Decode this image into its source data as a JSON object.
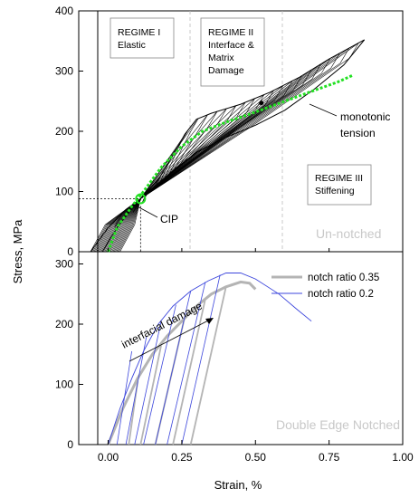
{
  "chart_data": [
    {
      "panel": "top",
      "type": "line",
      "xlabel": "Strain, %",
      "ylabel": "Stress, MPa",
      "xlim": [
        -0.1,
        1.0
      ],
      "ylim": [
        0,
        400
      ],
      "x_ticks": [
        "0.00",
        "0.25",
        "0.50",
        "0.75",
        "1.00"
      ],
      "y_ticks": [
        "0",
        "100",
        "200",
        "300",
        "400"
      ],
      "tag": "Un-notched",
      "regimes": [
        {
          "lines": [
            "REGIME I",
            "Elastic"
          ]
        },
        {
          "lines": [
            "REGIME II",
            "Interface &",
            "Matrix",
            "Damage"
          ]
        },
        {
          "lines": [
            "REGIME III",
            "Stiffening"
          ]
        }
      ],
      "regime_boundaries_x": [
        0.3,
        0.6
      ],
      "annotations": {
        "cip": {
          "label": "CIP",
          "x": 0.11,
          "y": 88
        },
        "monotonic": {
          "lines": [
            "monotonic",
            "tension"
          ]
        }
      },
      "cyclic_envelope_upper": [
        [
          -0.06,
          0
        ],
        [
          0.0,
          40
        ],
        [
          0.06,
          70
        ],
        [
          0.11,
          88
        ],
        [
          0.17,
          120
        ],
        [
          0.22,
          160
        ],
        [
          0.26,
          195
        ],
        [
          0.3,
          220
        ],
        [
          0.35,
          230
        ],
        [
          0.45,
          245
        ],
        [
          0.55,
          265
        ],
        [
          0.65,
          290
        ],
        [
          0.75,
          320
        ],
        [
          0.87,
          352
        ]
      ],
      "cyclic_envelope_lower": [
        [
          -0.02,
          0
        ],
        [
          0.03,
          40
        ],
        [
          0.08,
          72
        ],
        [
          0.11,
          88
        ],
        [
          0.16,
          108
        ],
        [
          0.22,
          135
        ],
        [
          0.3,
          165
        ],
        [
          0.4,
          190
        ],
        [
          0.5,
          210
        ],
        [
          0.6,
          235
        ],
        [
          0.7,
          270
        ],
        [
          0.8,
          310
        ],
        [
          0.87,
          352
        ]
      ],
      "monotonic_tension": [
        [
          0.0,
          0
        ],
        [
          0.03,
          40
        ],
        [
          0.08,
          75
        ],
        [
          0.12,
          100
        ],
        [
          0.18,
          140
        ],
        [
          0.25,
          175
        ],
        [
          0.32,
          200
        ],
        [
          0.4,
          215
        ],
        [
          0.5,
          232
        ],
        [
          0.6,
          250
        ],
        [
          0.7,
          268
        ],
        [
          0.78,
          282
        ],
        [
          0.83,
          293
        ]
      ]
    },
    {
      "panel": "bottom",
      "type": "line",
      "xlabel": "Strain, %",
      "ylabel": "Stress, MPa",
      "xlim": [
        -0.1,
        1.0
      ],
      "ylim": [
        0,
        400
      ],
      "x_ticks": [
        "0.00",
        "0.25",
        "0.50",
        "0.75",
        "1.00"
      ],
      "y_ticks": [
        "0",
        "100",
        "200",
        "300"
      ],
      "tag": "Double Edge Notched",
      "annotation": "interfacial damage",
      "series": [
        {
          "name": "notch ratio 0.35",
          "color": "#b4b4b4",
          "points": [
            [
              0.0,
              0
            ],
            [
              0.05,
              60
            ],
            [
              0.1,
              110
            ],
            [
              0.15,
              150
            ],
            [
              0.2,
              180
            ],
            [
              0.25,
              205
            ],
            [
              0.3,
              230
            ],
            [
              0.35,
              250
            ],
            [
              0.4,
              262
            ],
            [
              0.45,
              270
            ],
            [
              0.48,
              268
            ],
            [
              0.5,
              258
            ]
          ],
          "cycles": [
            [
              0.1,
              105,
              0.07
            ],
            [
              0.18,
              165,
              0.11
            ],
            [
              0.26,
              212,
              0.16
            ],
            [
              0.33,
              242,
              0.22
            ],
            [
              0.4,
              262,
              0.28
            ]
          ]
        },
        {
          "name": "notch ratio 0.2",
          "color": "#3c46dc",
          "points": [
            [
              0.0,
              0
            ],
            [
              0.04,
              60
            ],
            [
              0.08,
              110
            ],
            [
              0.12,
              155
            ],
            [
              0.17,
              200
            ],
            [
              0.22,
              230
            ],
            [
              0.28,
              255
            ],
            [
              0.34,
              272
            ],
            [
              0.4,
              285
            ],
            [
              0.45,
              285
            ],
            [
              0.5,
              275
            ],
            [
              0.58,
              250
            ],
            [
              0.64,
              225
            ],
            [
              0.69,
              205
            ]
          ],
          "cycles": [
            [
              0.08,
              155,
              0.03
            ],
            [
              0.13,
              180,
              0.06
            ],
            [
              0.18,
              205,
              0.09
            ],
            [
              0.23,
              232,
              0.12
            ],
            [
              0.28,
              255,
              0.16
            ],
            [
              0.33,
              270,
              0.2
            ],
            [
              0.38,
              282,
              0.25
            ]
          ]
        }
      ]
    }
  ]
}
